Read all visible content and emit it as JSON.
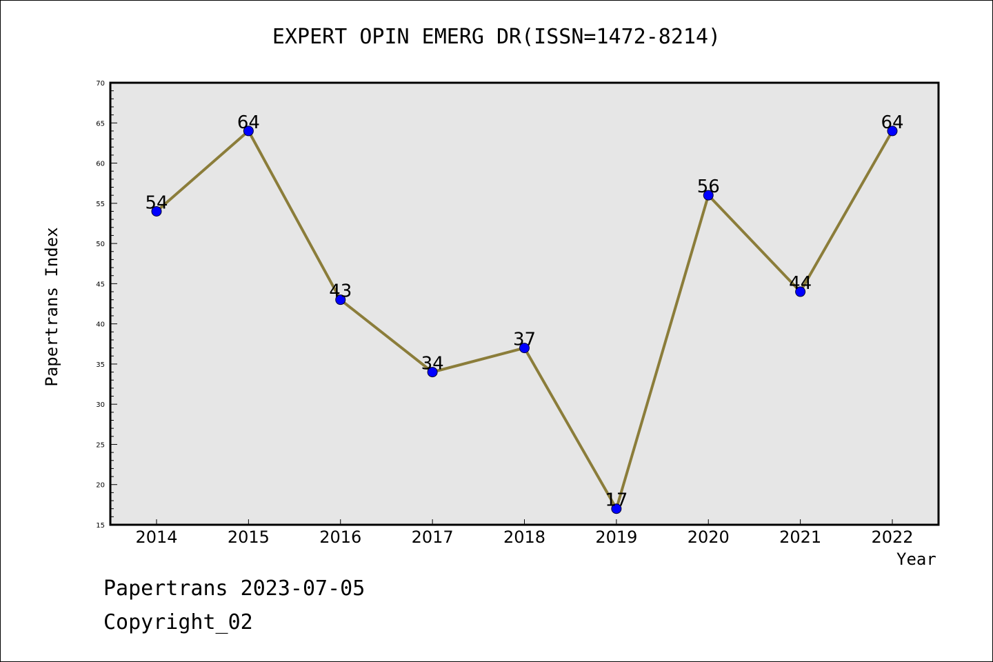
{
  "header": {
    "title": "EXPERT OPIN EMERG DR(ISSN=1472-8214)"
  },
  "footer": {
    "line1": "Papertrans 2023-07-05",
    "line2": "Copyright_02"
  },
  "chart_data": {
    "type": "line",
    "title": "EXPERT OPIN EMERG DR(ISSN=1472-8214)",
    "xlabel": "Year",
    "ylabel": "Papertrans Index",
    "categories": [
      "2014",
      "2015",
      "2016",
      "2017",
      "2018",
      "2019",
      "2020",
      "2021",
      "2022"
    ],
    "series": [
      {
        "values": [
          54,
          64,
          43,
          34,
          37,
          17,
          56,
          44,
          64
        ]
      }
    ],
    "ylim": [
      15,
      70
    ],
    "yticks": [
      15,
      20,
      25,
      30,
      35,
      40,
      45,
      50,
      55,
      60,
      65,
      70
    ],
    "grid": false,
    "colors": {
      "line": "#8B7D3A",
      "marker": "#0000FF",
      "plot_bg": "#E6E6E6"
    }
  }
}
